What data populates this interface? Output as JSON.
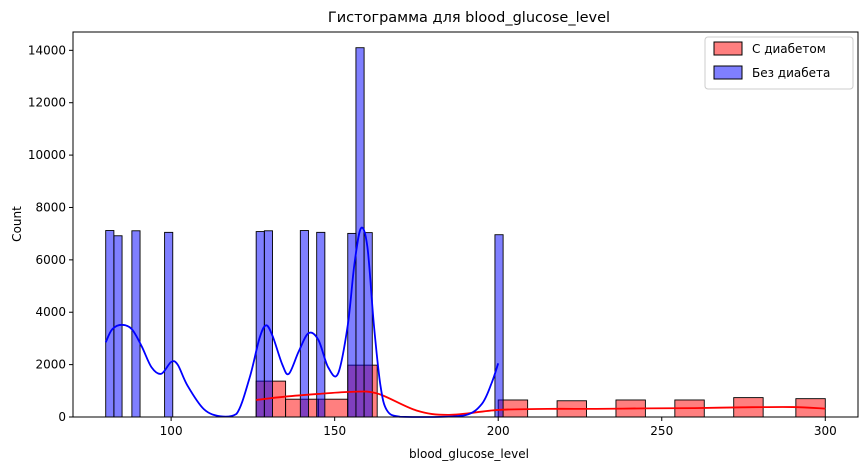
{
  "chart_data": {
    "type": "histogram",
    "title": "Гистограмма для blood_glucose_level",
    "xlabel": "blood_glucose_level",
    "ylabel": "Count",
    "xlim": [
      70,
      310
    ],
    "ylim": [
      0,
      14700
    ],
    "xticks": [
      100,
      150,
      200,
      250,
      300
    ],
    "yticks": [
      0,
      2000,
      4000,
      6000,
      8000,
      10000,
      12000,
      14000
    ],
    "grid": false,
    "legend_position": "top-right",
    "series": [
      {
        "name": "С диабетом",
        "color": "#ff0000",
        "fill_opacity": 0.5,
        "bins": [
          {
            "x0": 126,
            "x1": 135,
            "count": 1370
          },
          {
            "x0": 135,
            "x1": 145,
            "count": 680
          },
          {
            "x0": 145,
            "x1": 154,
            "count": 680
          },
          {
            "x0": 154,
            "x1": 163,
            "count": 1980
          },
          {
            "x0": 200,
            "x1": 209,
            "count": 650
          },
          {
            "x0": 218,
            "x1": 227,
            "count": 620
          },
          {
            "x0": 236,
            "x1": 245,
            "count": 650
          },
          {
            "x0": 254,
            "x1": 263,
            "count": 650
          },
          {
            "x0": 272,
            "x1": 281,
            "count": 740
          },
          {
            "x0": 291,
            "x1": 300,
            "count": 700
          }
        ],
        "kde": {
          "x": [
            126,
            135,
            145,
            155,
            163,
            175,
            185,
            200,
            215,
            230,
            245,
            260,
            275,
            290,
            300
          ],
          "y": [
            650,
            780,
            880,
            960,
            900,
            250,
            80,
            270,
            310,
            310,
            330,
            340,
            370,
            380,
            320
          ]
        }
      },
      {
        "name": "Без диабета",
        "color": "#0000ff",
        "fill_opacity": 0.5,
        "bins": [
          {
            "x0": 80,
            "x1": 82.5,
            "count": 7120
          },
          {
            "x0": 82.5,
            "x1": 85,
            "count": 6920
          },
          {
            "x0": 88,
            "x1": 90.5,
            "count": 7110
          },
          {
            "x0": 98,
            "x1": 100.5,
            "count": 7050
          },
          {
            "x0": 126,
            "x1": 128.5,
            "count": 7080
          },
          {
            "x0": 128.5,
            "x1": 131,
            "count": 7110
          },
          {
            "x0": 139.5,
            "x1": 142,
            "count": 7120
          },
          {
            "x0": 144.5,
            "x1": 147,
            "count": 7050
          },
          {
            "x0": 154,
            "x1": 156.5,
            "count": 7010
          },
          {
            "x0": 156.5,
            "x1": 159,
            "count": 14100
          },
          {
            "x0": 159,
            "x1": 161.5,
            "count": 7040
          },
          {
            "x0": 199,
            "x1": 201.5,
            "count": 6960
          }
        ],
        "kde": {
          "x": [
            80,
            82,
            85,
            88,
            91,
            94,
            97,
            100,
            102,
            105,
            110,
            115,
            120,
            124,
            127,
            129,
            131,
            134,
            136,
            139,
            142,
            145,
            148,
            151,
            154,
            156,
            158,
            160,
            162,
            164,
            166,
            170,
            180,
            190,
            195,
            198,
            200
          ],
          "y": [
            2850,
            3350,
            3520,
            3350,
            2700,
            1900,
            1650,
            2100,
            2000,
            1200,
            300,
            30,
            120,
            1500,
            3000,
            3500,
            3100,
            2000,
            1650,
            2500,
            3200,
            2950,
            1900,
            1650,
            3500,
            5800,
            7200,
            6500,
            3500,
            1200,
            250,
            10,
            0,
            70,
            500,
            1300,
            2050
          ]
        }
      }
    ]
  }
}
